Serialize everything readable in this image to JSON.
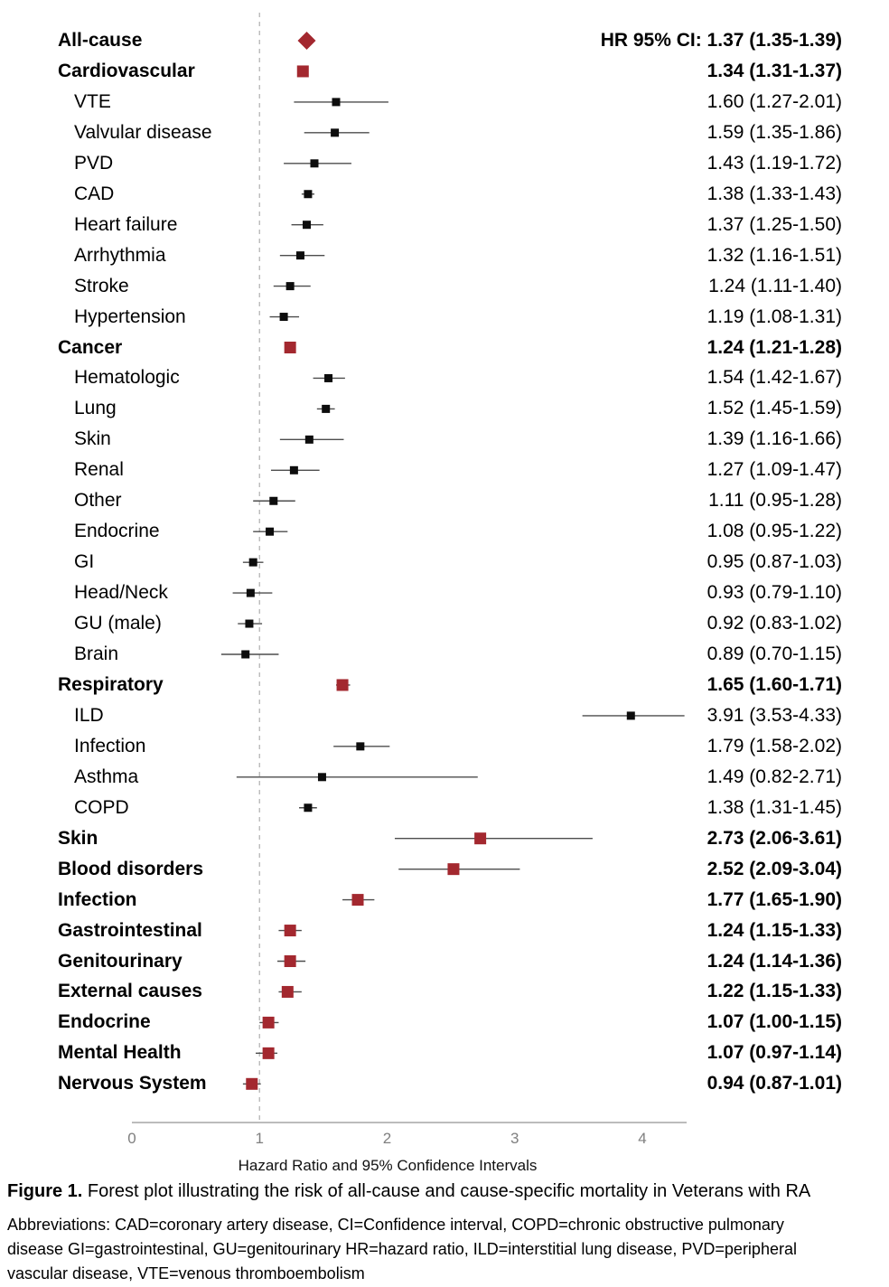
{
  "chart_data": {
    "type": "forest",
    "title": "",
    "xlabel": "Hazard Ratio and 95% Confidence Intervals",
    "x_ticks": [
      0,
      1,
      2,
      3,
      4
    ],
    "xlim": [
      0,
      4.35
    ],
    "reference_line": 1,
    "grid": false,
    "hr_header": "HR 95% CI:",
    "rows": [
      {
        "label": "All-cause",
        "level": "category",
        "marker": "diamond",
        "hr": 1.37,
        "lo": 1.35,
        "hi": 1.39,
        "ci": "1.37 (1.35-1.39)"
      },
      {
        "label": "Cardiovascular",
        "level": "category",
        "marker": "square",
        "hr": 1.34,
        "lo": 1.31,
        "hi": 1.37,
        "ci": "1.34 (1.31-1.37)"
      },
      {
        "label": "VTE",
        "level": "sub",
        "marker": "square",
        "hr": 1.6,
        "lo": 1.27,
        "hi": 2.01,
        "ci": "1.60 (1.27-2.01)"
      },
      {
        "label": "Valvular disease",
        "level": "sub",
        "marker": "square",
        "hr": 1.59,
        "lo": 1.35,
        "hi": 1.86,
        "ci": "1.59 (1.35-1.86)"
      },
      {
        "label": "PVD",
        "level": "sub",
        "marker": "square",
        "hr": 1.43,
        "lo": 1.19,
        "hi": 1.72,
        "ci": "1.43 (1.19-1.72)"
      },
      {
        "label": "CAD",
        "level": "sub",
        "marker": "square",
        "hr": 1.38,
        "lo": 1.33,
        "hi": 1.43,
        "ci": "1.38 (1.33-1.43)"
      },
      {
        "label": "Heart failure",
        "level": "sub",
        "marker": "square",
        "hr": 1.37,
        "lo": 1.25,
        "hi": 1.5,
        "ci": "1.37 (1.25-1.50)"
      },
      {
        "label": "Arrhythmia",
        "level": "sub",
        "marker": "square",
        "hr": 1.32,
        "lo": 1.16,
        "hi": 1.51,
        "ci": "1.32 (1.16-1.51)"
      },
      {
        "label": "Stroke",
        "level": "sub",
        "marker": "square",
        "hr": 1.24,
        "lo": 1.11,
        "hi": 1.4,
        "ci": "1.24 (1.11-1.40)"
      },
      {
        "label": "Hypertension",
        "level": "sub",
        "marker": "square",
        "hr": 1.19,
        "lo": 1.08,
        "hi": 1.31,
        "ci": "1.19 (1.08-1.31)"
      },
      {
        "label": "Cancer",
        "level": "category",
        "marker": "square",
        "hr": 1.24,
        "lo": 1.21,
        "hi": 1.28,
        "ci": "1.24 (1.21-1.28)"
      },
      {
        "label": "Hematologic",
        "level": "sub",
        "marker": "square",
        "hr": 1.54,
        "lo": 1.42,
        "hi": 1.67,
        "ci": "1.54 (1.42-1.67)"
      },
      {
        "label": "Lung",
        "level": "sub",
        "marker": "square",
        "hr": 1.52,
        "lo": 1.45,
        "hi": 1.59,
        "ci": "1.52 (1.45-1.59)"
      },
      {
        "label": "Skin",
        "level": "sub",
        "marker": "square",
        "hr": 1.39,
        "lo": 1.16,
        "hi": 1.66,
        "ci": "1.39 (1.16-1.66)"
      },
      {
        "label": "Renal",
        "level": "sub",
        "marker": "square",
        "hr": 1.27,
        "lo": 1.09,
        "hi": 1.47,
        "ci": "1.27 (1.09-1.47)"
      },
      {
        "label": "Other",
        "level": "sub",
        "marker": "square",
        "hr": 1.11,
        "lo": 0.95,
        "hi": 1.28,
        "ci": "1.11 (0.95-1.28)"
      },
      {
        "label": "Endocrine",
        "level": "sub",
        "marker": "square",
        "hr": 1.08,
        "lo": 0.95,
        "hi": 1.22,
        "ci": "1.08 (0.95-1.22)"
      },
      {
        "label": "GI",
        "level": "sub",
        "marker": "square",
        "hr": 0.95,
        "lo": 0.87,
        "hi": 1.03,
        "ci": "0.95 (0.87-1.03)"
      },
      {
        "label": "Head/Neck",
        "level": "sub",
        "marker": "square",
        "hr": 0.93,
        "lo": 0.79,
        "hi": 1.1,
        "ci": "0.93 (0.79-1.10)"
      },
      {
        "label": "GU (male)",
        "level": "sub",
        "marker": "square",
        "hr": 0.92,
        "lo": 0.83,
        "hi": 1.02,
        "ci": "0.92 (0.83-1.02)"
      },
      {
        "label": "Brain",
        "level": "sub",
        "marker": "square",
        "hr": 0.89,
        "lo": 0.7,
        "hi": 1.15,
        "ci": "0.89 (0.70-1.15)"
      },
      {
        "label": "Respiratory",
        "level": "category",
        "marker": "square",
        "hr": 1.65,
        "lo": 1.6,
        "hi": 1.71,
        "ci": "1.65 (1.60-1.71)"
      },
      {
        "label": "ILD",
        "level": "sub",
        "marker": "square",
        "hr": 3.91,
        "lo": 3.53,
        "hi": 4.33,
        "ci": "3.91 (3.53-4.33)"
      },
      {
        "label": "Infection",
        "level": "sub",
        "marker": "square",
        "hr": 1.79,
        "lo": 1.58,
        "hi": 2.02,
        "ci": "1.79 (1.58-2.02)"
      },
      {
        "label": "Asthma",
        "level": "sub",
        "marker": "square",
        "hr": 1.49,
        "lo": 0.82,
        "hi": 2.71,
        "ci": "1.49 (0.82-2.71)"
      },
      {
        "label": "COPD",
        "level": "sub",
        "marker": "square",
        "hr": 1.38,
        "lo": 1.31,
        "hi": 1.45,
        "ci": "1.38 (1.31-1.45)"
      },
      {
        "label": "Skin",
        "level": "category",
        "marker": "square",
        "hr": 2.73,
        "lo": 2.06,
        "hi": 3.61,
        "ci": "2.73 (2.06-3.61)"
      },
      {
        "label": "Blood disorders",
        "level": "category",
        "marker": "square",
        "hr": 2.52,
        "lo": 2.09,
        "hi": 3.04,
        "ci": "2.52 (2.09-3.04)"
      },
      {
        "label": "Infection",
        "level": "category",
        "marker": "square",
        "hr": 1.77,
        "lo": 1.65,
        "hi": 1.9,
        "ci": "1.77 (1.65-1.90)"
      },
      {
        "label": "Gastrointestinal",
        "level": "category",
        "marker": "square",
        "hr": 1.24,
        "lo": 1.15,
        "hi": 1.33,
        "ci": "1.24 (1.15-1.33)"
      },
      {
        "label": "Genitourinary",
        "level": "category",
        "marker": "square",
        "hr": 1.24,
        "lo": 1.14,
        "hi": 1.36,
        "ci": "1.24 (1.14-1.36)"
      },
      {
        "label": "External causes",
        "level": "category",
        "marker": "square",
        "hr": 1.22,
        "lo": 1.15,
        "hi": 1.33,
        "ci": "1.22 (1.15-1.33)"
      },
      {
        "label": "Endocrine",
        "level": "category",
        "marker": "square",
        "hr": 1.07,
        "lo": 1.0,
        "hi": 1.15,
        "ci": "1.07 (1.00-1.15)"
      },
      {
        "label": "Mental Health",
        "level": "category",
        "marker": "square",
        "hr": 1.07,
        "lo": 0.97,
        "hi": 1.14,
        "ci": "1.07 (0.97-1.14)"
      },
      {
        "label": "Nervous System",
        "level": "category",
        "marker": "square",
        "hr": 0.94,
        "lo": 0.87,
        "hi": 1.01,
        "ci": "0.94 (0.87-1.01)"
      }
    ]
  },
  "colors": {
    "category_marker": "#A3282F",
    "sub_marker": "#0d0d0d",
    "ci_line": "#4d4d4d",
    "axis_line": "#a6a6a6",
    "tick_label": "#7f7f7f",
    "reference_line": "#b5b5b5"
  },
  "caption": {
    "prefix": "Figure 1.",
    "rest": " Forest plot illustrating the risk of all-cause and cause-specific mortality in Veterans with RA"
  },
  "abbreviations": {
    "lines": [
      "Abbreviations: CAD=coronary artery disease, CI=Confidence interval, COPD=chronic obstructive pulmonary",
      "disease GI=gastrointestinal, GU=genitourinary HR=hazard ratio, ILD=interstitial lung disease, PVD=peripheral",
      "vascular disease, VTE=venous thromboembolism"
    ]
  }
}
